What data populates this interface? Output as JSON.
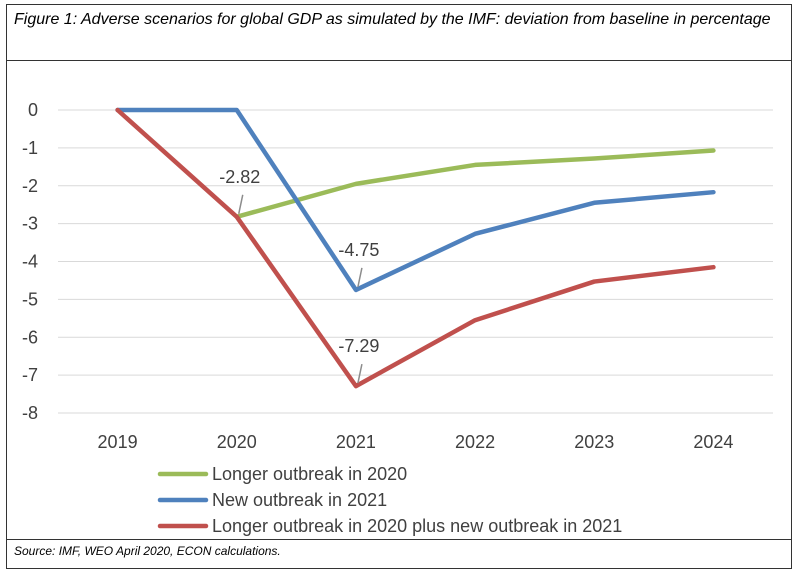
{
  "caption": "Figure 1: Adverse scenarios for global GDP as simulated by the IMF: deviation from baseline in percentage",
  "source": "Source: IMF, WEO April 2020, ECON calculations.",
  "chart_data": {
    "type": "line",
    "title": "",
    "xlabel": "",
    "ylabel": "",
    "categories": [
      "2019",
      "2020",
      "2021",
      "2022",
      "2023",
      "2024"
    ],
    "ylim": [
      -8,
      0
    ],
    "yticks": [
      0,
      -1,
      -2,
      -3,
      -4,
      -5,
      -6,
      -7,
      -8
    ],
    "grid": true,
    "legend_position": "bottom",
    "series": [
      {
        "name": "Longer outbreak in 2020",
        "color": "#9BBB59",
        "values": [
          null,
          -2.82,
          -1.95,
          -1.45,
          -1.28,
          -1.07
        ]
      },
      {
        "name": "New outbreak in 2021",
        "color": "#4F81BD",
        "values": [
          0,
          0,
          -4.75,
          -3.27,
          -2.45,
          -2.17
        ]
      },
      {
        "name": "Longer outbreak in 2020 plus new outbreak in 2021",
        "color": "#C0504D",
        "values": [
          0,
          -2.82,
          -7.29,
          -5.55,
          -4.53,
          -4.15
        ]
      }
    ],
    "annotations": [
      {
        "text": "-2.82",
        "category": "2020",
        "value": -2.82
      },
      {
        "text": "-4.75",
        "category": "2021",
        "value": -4.75
      },
      {
        "text": "-7.29",
        "category": "2021",
        "value": -7.29
      }
    ]
  }
}
